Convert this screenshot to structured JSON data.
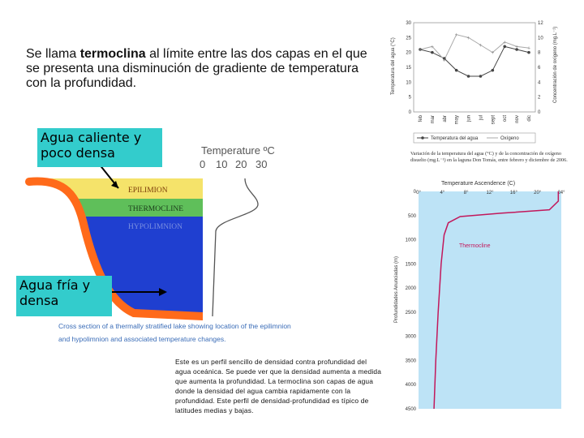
{
  "intro": {
    "before": "Se llama ",
    "bold": "termoclina",
    "after": " al límite entre las dos capas en el que se presenta una disminución de gradiente de temperatura con la profundidad."
  },
  "callouts": {
    "hot": "Agua caliente y poco densa",
    "cold": "Agua fría y densa"
  },
  "lake_figure": {
    "axis_title": "Temperature ºC",
    "ticks": [
      "0",
      "10",
      "20",
      "30"
    ],
    "layers": {
      "epilimnion": "EPILIMION",
      "thermocline": "THERMOCLINE",
      "hypolimnion": "HYPOLIMNION"
    },
    "caption_line1": "Cross section of a thermally stratified lake showing location of the epilimnion",
    "caption_line2": "and hypolimnion and associated temperature changes.",
    "colors": {
      "epilimnion": "#f5e36a",
      "thermocline": "#5fbf5a",
      "hypolimnion": "#1f3fd0",
      "shore": "#ff6a1a"
    }
  },
  "monthly_chart": {
    "left_axis_label": "Temperatura del agua (°C)",
    "right_axis_label": "Concentración de oxígeno (mg.L⁻¹)",
    "left_ticks": [
      "0",
      "5",
      "10",
      "15",
      "20",
      "25",
      "30"
    ],
    "right_ticks": [
      "0",
      "2",
      "4",
      "6",
      "8",
      "10",
      "12"
    ],
    "months": [
      "feb",
      "mar",
      "abr",
      "may",
      "jun",
      "jul",
      "sept",
      "oct",
      "nov",
      "dic"
    ],
    "legend_temp": "Temperatura del agua",
    "legend_oxy": "Oxígeno",
    "caption": "Variación de la temperatura del agua (°C) y de la concentración de oxígeno disuelto (mg.L⁻¹) en la laguna Don Tomás, entre febrero y diciembre de 2006."
  },
  "ocean_profile": {
    "title": "Temperature Ascendence (C)",
    "x_ticks": [
      "0°",
      "4°",
      "8°",
      "12°",
      "16°",
      "20°",
      "24°"
    ],
    "y_ticks": [
      "0",
      "500",
      "1000",
      "1500",
      "2000",
      "2500",
      "3000",
      "3500",
      "4000",
      "4500"
    ],
    "y_label": "Profundidades Anunciadas (m)",
    "annotation": "Thermocline"
  },
  "note": "Este es un perfil sencillo de densidad contra profundidad del agua oceánica. Se puede ver que la densidad aumenta a medida que aumenta la profundidad. La termoclina son capas de agua donde la densidad del agua cambia rapidamente con la profundidad. Este perfil de densidad-profundidad es típico de latitudes medias y bajas.",
  "chart_data": [
    {
      "type": "line",
      "title": "",
      "xlabel": "",
      "ylabel": "Temperatura del agua (°C)",
      "y2label": "Concentración de oxígeno (mg.L⁻¹)",
      "categories": [
        "feb",
        "mar",
        "abr",
        "may",
        "jun",
        "jul",
        "sept",
        "oct",
        "nov",
        "dic"
      ],
      "ylim": [
        0,
        30
      ],
      "y2lim": [
        0,
        12
      ],
      "series": [
        {
          "name": "Temperatura del agua",
          "axis": "left",
          "values": [
            21,
            20,
            18,
            14,
            12,
            12,
            14,
            22,
            21,
            20
          ]
        },
        {
          "name": "Oxígeno",
          "axis": "right",
          "values": [
            8.4,
            8.8,
            7.0,
            10.4,
            10.0,
            9.0,
            8.0,
            9.4,
            8.8,
            8.6
          ]
        }
      ]
    },
    {
      "type": "line",
      "title": "Temperature Ascendence (C)",
      "xlabel": "",
      "ylabel": "Profundidades Anunciadas (m)",
      "xlim": [
        0,
        24
      ],
      "ylim": [
        0,
        4500
      ],
      "series": [
        {
          "name": "",
          "points": [
            [
              23.5,
              0
            ],
            [
              23.5,
              200
            ],
            [
              22,
              380
            ],
            [
              14,
              450
            ],
            [
              7,
              520
            ],
            [
              5,
              650
            ],
            [
              4.3,
              900
            ],
            [
              3.8,
              1500
            ],
            [
              3.3,
              2500
            ],
            [
              2.9,
              3500
            ],
            [
              2.6,
              4500
            ]
          ]
        }
      ]
    }
  ]
}
